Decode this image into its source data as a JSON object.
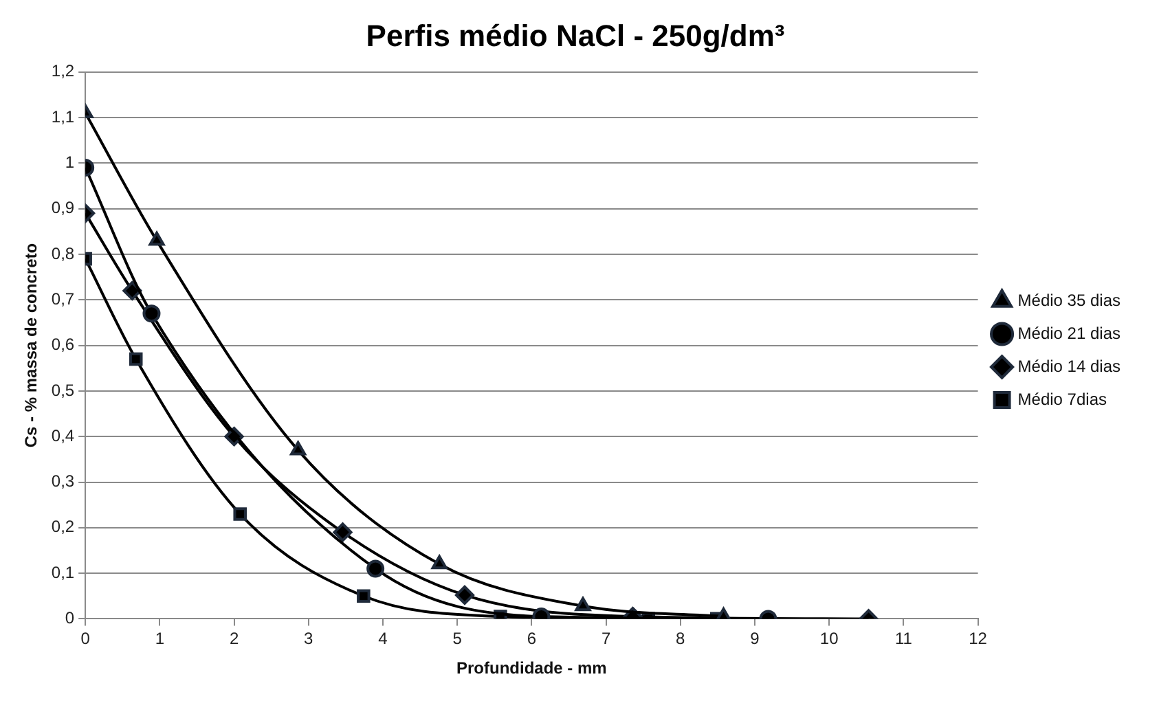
{
  "chart_data": {
    "type": "line",
    "title": "Perfis médio NaCl - 250g/dm³",
    "xlabel": "Profundidade - mm",
    "ylabel": "Cs - % massa de concreto",
    "series": [
      {
        "name": "Médio 7dias",
        "color": "#000000",
        "marker": "square",
        "x": [
          0,
          0.68,
          2.08,
          3.74,
          5.58,
          7.57,
          8.49
        ],
        "values": [
          0.79,
          0.57,
          0.23,
          0.05,
          0.005,
          0,
          0
        ]
      },
      {
        "name": "Médio 14 dias",
        "color": "#000000",
        "marker": "diamond",
        "x": [
          0,
          0.63,
          2.0,
          3.46,
          5.1,
          7.36,
          10.53
        ],
        "values": [
          0.89,
          0.72,
          0.4,
          0.19,
          0.052,
          0.005,
          0
        ]
      },
      {
        "name": "Médio 21 dias",
        "color": "#000000",
        "marker": "circle",
        "x": [
          0,
          0.89,
          3.9,
          6.13,
          9.18
        ],
        "values": [
          0.99,
          0.67,
          0.11,
          0.005,
          0
        ]
      },
      {
        "name": "Médio 35 dias",
        "color": "#000000",
        "marker": "triangle",
        "x": [
          0,
          0.96,
          2.86,
          4.76,
          6.69,
          8.58
        ],
        "values": [
          1.11,
          0.83,
          0.37,
          0.12,
          0.028,
          0.005
        ]
      }
    ],
    "xlim": [
      0,
      12
    ],
    "xticks": [
      0,
      1,
      2,
      3,
      4,
      5,
      6,
      7,
      8,
      9,
      10,
      11,
      12
    ],
    "ylim": [
      0,
      1.2
    ],
    "yticks": [
      0,
      {
        "value": 0.1,
        "label": "0,1"
      },
      {
        "value": 0.2,
        "label": "0,2"
      },
      {
        "value": 0.3,
        "label": "0,3"
      },
      {
        "value": 0.4,
        "label": "0,4"
      },
      {
        "value": 0.5,
        "label": "0,5"
      },
      {
        "value": 0.6,
        "label": "0,6"
      },
      {
        "value": 0.7,
        "label": "0,7"
      },
      {
        "value": 0.8,
        "label": "0,8"
      },
      {
        "value": 0.9,
        "label": "0,9"
      },
      1,
      {
        "value": 1.1,
        "label": "1,1"
      },
      {
        "value": 1.2,
        "label": "1,2"
      }
    ],
    "grid": "y",
    "legend": "right",
    "line_style": "solid"
  }
}
